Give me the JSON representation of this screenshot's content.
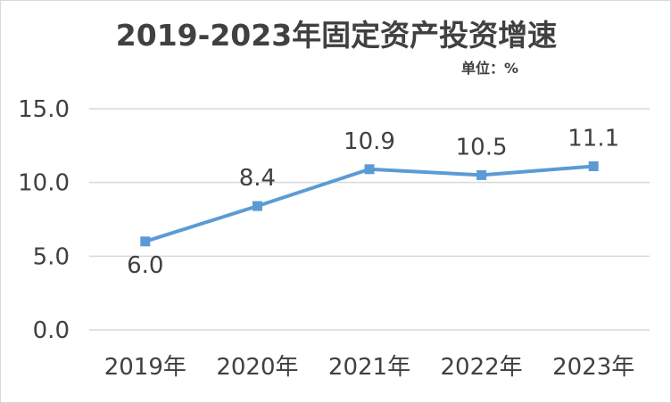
{
  "chart_data": {
    "type": "line",
    "title": "2019-2023年固定资产投资增速",
    "unit_label": "单位：%",
    "categories": [
      "2019年",
      "2020年",
      "2021年",
      "2022年",
      "2023年"
    ],
    "series": [
      {
        "name": "固定资产投资增速",
        "values": [
          6.0,
          8.4,
          10.9,
          10.5,
          11.1
        ]
      }
    ],
    "data_labels": [
      "6.0",
      "8.4",
      "10.9",
      "10.5",
      "11.1"
    ],
    "y_ticks": [
      "0.0",
      "5.0",
      "10.0",
      "15.0"
    ],
    "ylim": [
      0,
      15
    ],
    "grid": true,
    "xlabel": "",
    "ylabel": ""
  },
  "colors": {
    "line": "#5b9bd5",
    "grid": "#d9d9d9",
    "text": "#404040"
  }
}
